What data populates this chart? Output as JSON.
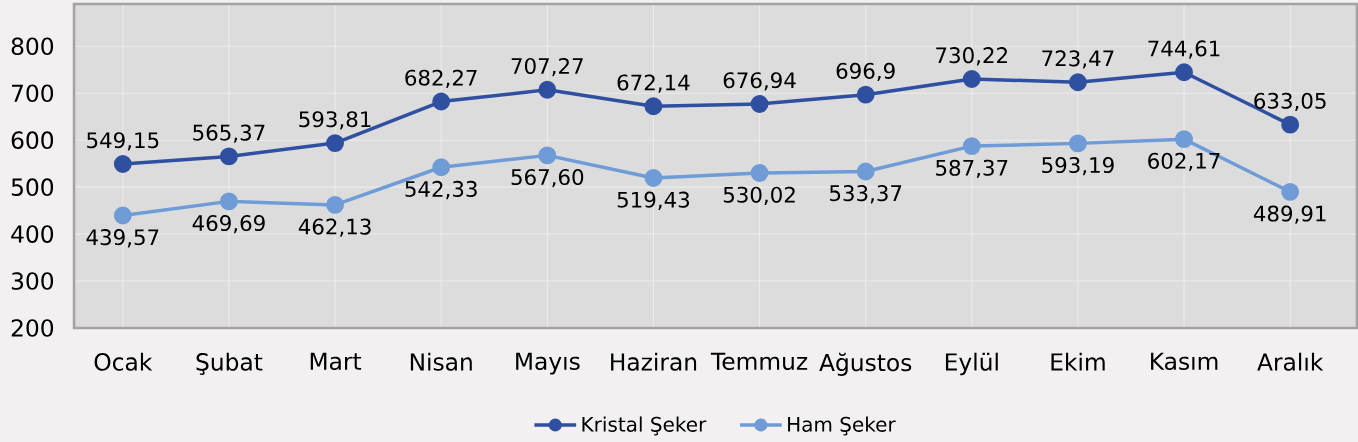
{
  "chart_data": {
    "type": "line",
    "categories": [
      "Ocak",
      "Şubat",
      "Mart",
      "Nisan",
      "Mayıs",
      "Haziran",
      "Temmuz",
      "Ağustos",
      "Eylül",
      "Ekim",
      "Kasım",
      "Aralık"
    ],
    "series": [
      {
        "name": "Kristal Şeker",
        "color": "#2f4fa0",
        "values": [
          549.15,
          565.37,
          593.81,
          682.27,
          707.27,
          672.14,
          676.94,
          696.9,
          730.22,
          723.47,
          744.61,
          633.05
        ],
        "value_labels": [
          "549,15",
          "565,37",
          "593,81",
          "682,27",
          "707,27",
          "672,14",
          "676,94",
          "696,9",
          "730,22",
          "723,47",
          "744,61",
          "633,05"
        ]
      },
      {
        "name": "Ham Şeker",
        "color": "#6f9bd7",
        "values": [
          439.57,
          469.69,
          462.13,
          542.33,
          567.6,
          519.43,
          530.02,
          533.37,
          587.37,
          593.19,
          602.17,
          489.91
        ],
        "value_labels": [
          "439,57",
          "469,69",
          "462,13",
          "542,33",
          "567,60",
          "519,43",
          "530,02",
          "533,37",
          "587,37",
          "593,19",
          "602,17",
          "489,91"
        ]
      }
    ],
    "ylim": [
      200,
      890
    ],
    "yticks": [
      200,
      300,
      400,
      500,
      600,
      700,
      800
    ],
    "grid": true,
    "legend": "bottom",
    "marker": "circle",
    "line_style": "solid"
  }
}
